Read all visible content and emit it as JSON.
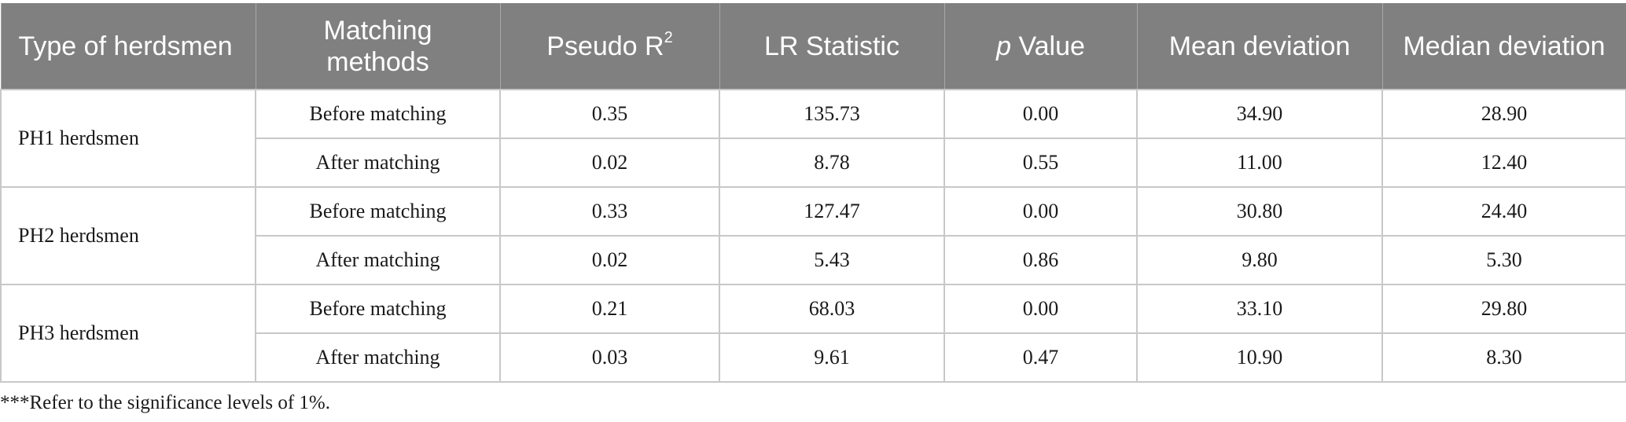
{
  "table": {
    "headers": {
      "type": "Type of herdsmen",
      "matching": "Matching methods",
      "pseudo_r2_prefix": "Pseudo R",
      "pseudo_r2_sup": "2",
      "lr": "LR Statistic",
      "p_italic": "p",
      "p_rest": " Value",
      "mean": "Mean deviation",
      "median": "Median deviation"
    },
    "groups": [
      {
        "type": "PH1 herdsmen",
        "rows": [
          {
            "method": "Before matching",
            "pseudo_r2": "0.35",
            "lr": "135.73",
            "p": "0.00",
            "mean": "34.90",
            "median": "28.90"
          },
          {
            "method": "After matching",
            "pseudo_r2": "0.02",
            "lr": "8.78",
            "p": "0.55",
            "mean": "11.00",
            "median": "12.40"
          }
        ]
      },
      {
        "type": "PH2 herdsmen",
        "rows": [
          {
            "method": "Before matching",
            "pseudo_r2": "0.33",
            "lr": "127.47",
            "p": "0.00",
            "mean": "30.80",
            "median": "24.40"
          },
          {
            "method": "After matching",
            "pseudo_r2": "0.02",
            "lr": "5.43",
            "p": "0.86",
            "mean": "9.80",
            "median": "5.30"
          }
        ]
      },
      {
        "type": "PH3 herdsmen",
        "rows": [
          {
            "method": "Before matching",
            "pseudo_r2": "0.21",
            "lr": "68.03",
            "p": "0.00",
            "mean": "33.10",
            "median": "29.80"
          },
          {
            "method": "After matching",
            "pseudo_r2": "0.03",
            "lr": "9.61",
            "p": "0.47",
            "mean": "10.90",
            "median": "8.30"
          }
        ]
      }
    ]
  },
  "footnote": "***Refer to the significance levels of 1%."
}
